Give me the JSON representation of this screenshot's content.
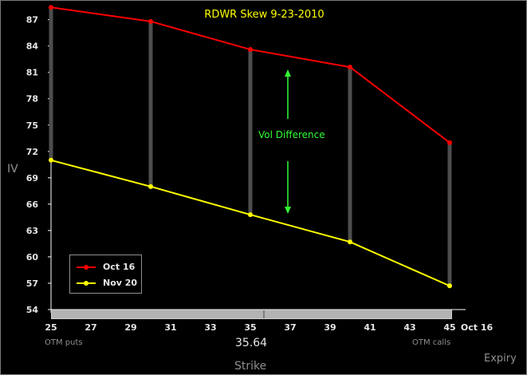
{
  "chart_data": {
    "type": "line",
    "title": "RDWR Skew 9-23-2010",
    "xlabel": "Strike",
    "ylabel": "IV",
    "categories": [
      25,
      30,
      35,
      40,
      45
    ],
    "series": [
      {
        "name": "Oct 16",
        "color": "#ff0000",
        "values": [
          88.4,
          86.8,
          83.6,
          81.6,
          73.0
        ]
      },
      {
        "name": "Nov 20",
        "color": "#ffff00",
        "values": [
          71.0,
          68.0,
          64.8,
          61.7,
          56.7
        ]
      }
    ],
    "xlim": [
      25,
      45
    ],
    "ylim": [
      54,
      88.5
    ],
    "x_ticks": [
      "25",
      "27",
      "29",
      "31",
      "33",
      "35",
      "37",
      "39",
      "41",
      "43",
      "45"
    ],
    "y_ticks": [
      "54",
      "57",
      "60",
      "63",
      "66",
      "69",
      "72",
      "75",
      "78",
      "81",
      "84",
      "87"
    ],
    "difference_bar_color": "#4d4d4d",
    "annotation": "Vol Difference",
    "annotation_color": "#33ff33",
    "legend_position": "bottom-left",
    "grid": false
  },
  "axis_extra": {
    "expiry_tick": "Oct 16",
    "expiry_label": "Expiry"
  },
  "slider": {
    "value_text": "35.64",
    "value": 35.64,
    "left_caption": "OTM puts",
    "right_caption": "OTM calls"
  }
}
